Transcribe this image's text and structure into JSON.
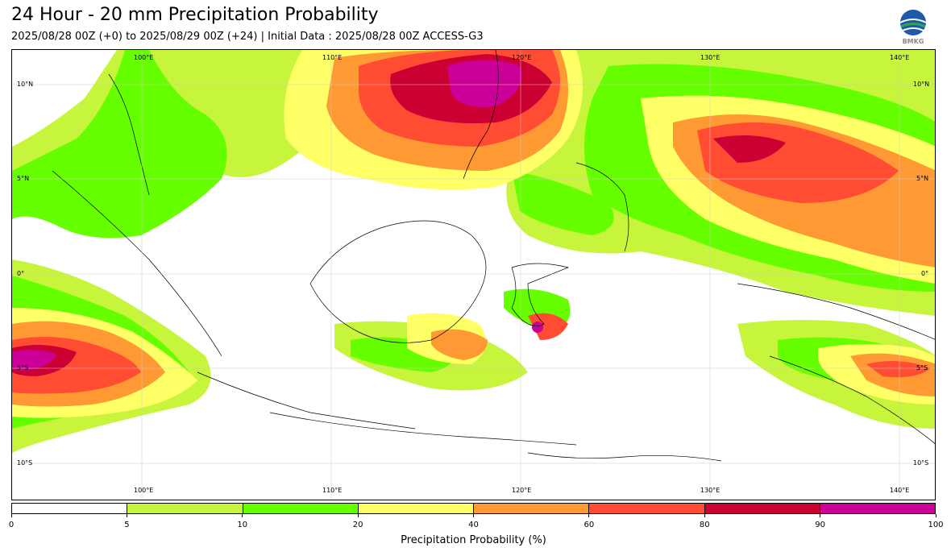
{
  "header": {
    "title": "24 Hour - 20 mm Precipitation Probability",
    "subtitle": "2025/08/28 00Z (+0) to 2025/08/29 00Z (+24) | Initial Data : 2025/08/28 00Z ACCESS-G3",
    "logo_text": "BMKG"
  },
  "map": {
    "lon_labels": [
      "100°E",
      "110°E",
      "120°E",
      "130°E",
      "140°E"
    ],
    "lat_labels": [
      "10°N",
      "5°N",
      "0°",
      "5°S",
      "10°S"
    ],
    "land_color": "#ffffff",
    "coast_color": "#000000"
  },
  "colorbar": {
    "title": "Precipitation Probability (%)",
    "ticks": [
      "0",
      "5",
      "10",
      "20",
      "40",
      "60",
      "80",
      "90",
      "100"
    ],
    "colors": [
      "#ffffff",
      "#c6f53c",
      "#66ff00",
      "#ffff66",
      "#ff9933",
      "#ff4c33",
      "#cc0033",
      "#cc0099"
    ]
  }
}
